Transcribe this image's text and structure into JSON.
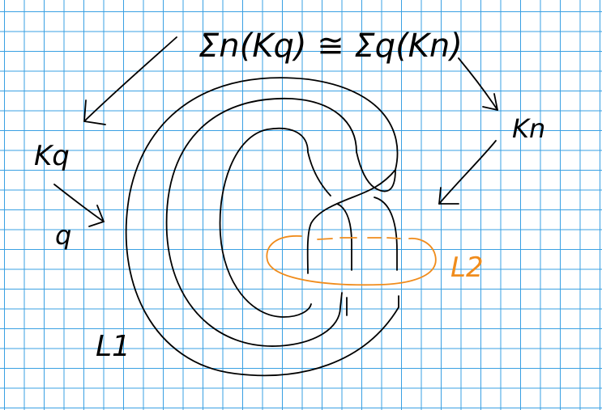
{
  "equation": "Σn(Kq) ≅ Σq(Kn)",
  "labels": {
    "kq": "Kq",
    "q": "q",
    "kn": "Kn",
    "l1": "L1",
    "l2": "L2"
  },
  "colors": {
    "ink": "#000000",
    "grid": "#39a0e3",
    "orange_curve": "#f08c1c",
    "background": "#ffffff"
  }
}
